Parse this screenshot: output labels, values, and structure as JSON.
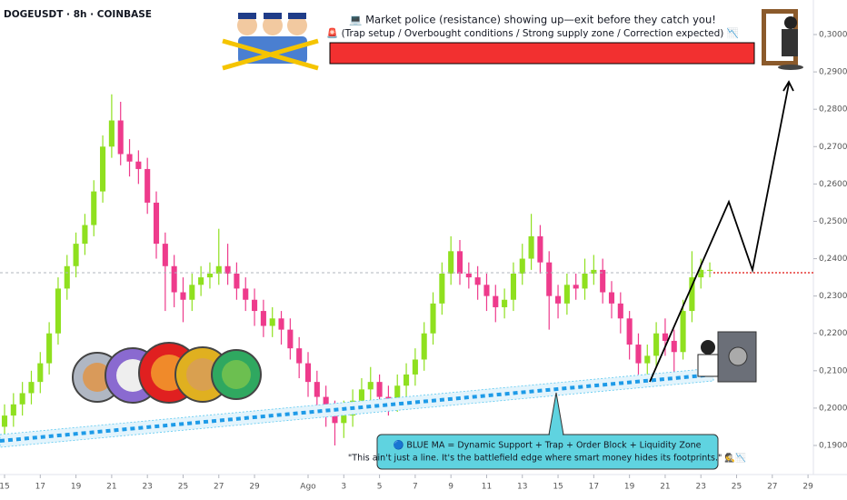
{
  "chart_data": {
    "type": "candlestick",
    "title": "DOGEUSDT · 8h · COINBASE",
    "annotations": [
      "💻 Market police (resistance) showing up—exit before they catch you!",
      "🚨 (Trap setup / Overbought conditions / Strong supply zone / Correction expected) 📉",
      "🔵 BLUE MA = Dynamic Support + Trap + Order Block + Liquidity Zone",
      "\"This ain't just a line. It's the battlefield edge where smart money hides its footprints.\" 🕵️📉"
    ],
    "up_color": "#8fe01f",
    "down_color": "#ee3b8c",
    "open": [
      0.195,
      0.198,
      0.201,
      0.204,
      0.207,
      0.212,
      0.22,
      0.232,
      0.238,
      0.244,
      0.249,
      0.258,
      0.27,
      0.277,
      0.268,
      0.266,
      0.264,
      0.255,
      0.244,
      0.238,
      0.231,
      0.229,
      0.233,
      0.235,
      0.236,
      0.238,
      0.236,
      0.232,
      0.229,
      0.226,
      0.222,
      0.224,
      0.221,
      0.216,
      0.212,
      0.207,
      0.203,
      0.199,
      0.196,
      0.198,
      0.202,
      0.205,
      0.207,
      0.203,
      0.201,
      0.206,
      0.209,
      0.213,
      0.22,
      0.228,
      0.236,
      0.242,
      0.236,
      0.235,
      0.233,
      0.23,
      0.227,
      0.229,
      0.236,
      0.24,
      0.246,
      0.239,
      0.23,
      0.228,
      0.233,
      0.232,
      0.236,
      0.237,
      0.231,
      0.228,
      0.224,
      0.217,
      0.212,
      0.214,
      0.22,
      0.218,
      0.215,
      0.226,
      0.235,
      0.237
    ],
    "high": [
      0.201,
      0.204,
      0.207,
      0.21,
      0.215,
      0.223,
      0.235,
      0.241,
      0.247,
      0.252,
      0.261,
      0.273,
      0.284,
      0.282,
      0.272,
      0.269,
      0.267,
      0.258,
      0.247,
      0.241,
      0.235,
      0.236,
      0.238,
      0.239,
      0.248,
      0.244,
      0.239,
      0.235,
      0.232,
      0.229,
      0.227,
      0.226,
      0.224,
      0.219,
      0.215,
      0.21,
      0.206,
      0.202,
      0.202,
      0.205,
      0.208,
      0.211,
      0.209,
      0.206,
      0.209,
      0.212,
      0.216,
      0.223,
      0.231,
      0.239,
      0.246,
      0.245,
      0.239,
      0.238,
      0.236,
      0.233,
      0.232,
      0.239,
      0.244,
      0.252,
      0.249,
      0.242,
      0.233,
      0.236,
      0.236,
      0.24,
      0.241,
      0.24,
      0.234,
      0.231,
      0.226,
      0.22,
      0.217,
      0.223,
      0.224,
      0.221,
      0.229,
      0.242,
      0.24,
      0.239
    ],
    "low": [
      0.191,
      0.195,
      0.198,
      0.201,
      0.204,
      0.209,
      0.217,
      0.229,
      0.235,
      0.241,
      0.246,
      0.255,
      0.267,
      0.265,
      0.262,
      0.26,
      0.252,
      0.24,
      0.226,
      0.227,
      0.223,
      0.226,
      0.23,
      0.232,
      0.233,
      0.233,
      0.229,
      0.226,
      0.222,
      0.219,
      0.219,
      0.217,
      0.213,
      0.208,
      0.203,
      0.199,
      0.195,
      0.19,
      0.192,
      0.195,
      0.199,
      0.202,
      0.199,
      0.198,
      0.199,
      0.203,
      0.206,
      0.21,
      0.217,
      0.225,
      0.233,
      0.233,
      0.232,
      0.229,
      0.226,
      0.223,
      0.224,
      0.226,
      0.233,
      0.237,
      0.236,
      0.221,
      0.224,
      0.225,
      0.229,
      0.229,
      0.233,
      0.228,
      0.224,
      0.22,
      0.213,
      0.209,
      0.209,
      0.211,
      0.214,
      0.208,
      0.213,
      0.223,
      0.232,
      0.235
    ],
    "close": [
      0.198,
      0.201,
      0.204,
      0.207,
      0.212,
      0.22,
      0.232,
      0.238,
      0.244,
      0.249,
      0.258,
      0.27,
      0.277,
      0.268,
      0.266,
      0.264,
      0.255,
      0.244,
      0.238,
      0.231,
      0.229,
      0.233,
      0.235,
      0.236,
      0.238,
      0.236,
      0.232,
      0.229,
      0.226,
      0.222,
      0.224,
      0.221,
      0.216,
      0.212,
      0.207,
      0.203,
      0.199,
      0.196,
      0.198,
      0.202,
      0.205,
      0.207,
      0.203,
      0.201,
      0.206,
      0.209,
      0.213,
      0.22,
      0.228,
      0.236,
      0.242,
      0.236,
      0.235,
      0.233,
      0.23,
      0.227,
      0.229,
      0.236,
      0.24,
      0.246,
      0.239,
      0.23,
      0.228,
      0.233,
      0.232,
      0.236,
      0.237,
      0.231,
      0.228,
      0.224,
      0.217,
      0.212,
      0.214,
      0.22,
      0.218,
      0.215,
      0.226,
      0.235,
      0.237,
      0.237
    ],
    "xlim": [
      -0.51,
      90.6
    ],
    "xticks": [
      {
        "value": 0,
        "label": "15"
      },
      {
        "value": 4,
        "label": "17"
      },
      {
        "value": 8,
        "label": "19"
      },
      {
        "value": 12,
        "label": "21"
      },
      {
        "value": 16,
        "label": "23"
      },
      {
        "value": 20,
        "label": "25"
      },
      {
        "value": 24,
        "label": "27"
      },
      {
        "value": 28,
        "label": "29"
      },
      {
        "value": 34,
        "label": "Ago"
      },
      {
        "value": 38,
        "label": "3"
      },
      {
        "value": 42,
        "label": "5"
      },
      {
        "value": 46,
        "label": "7"
      },
      {
        "value": 50,
        "label": "9"
      },
      {
        "value": 54,
        "label": "11"
      },
      {
        "value": 58,
        "label": "13"
      },
      {
        "value": 62,
        "label": "15"
      },
      {
        "value": 66,
        "label": "17"
      },
      {
        "value": 70,
        "label": "19"
      },
      {
        "value": 74,
        "label": "21"
      },
      {
        "value": 78,
        "label": "23"
      },
      {
        "value": 82,
        "label": "25"
      },
      {
        "value": 86,
        "label": "27"
      },
      {
        "value": 90,
        "label": "29"
      }
    ],
    "ylim": [
      0.18513,
      0.30925
    ],
    "yticks": [
      {
        "value": 0.19,
        "label": "0,1900"
      },
      {
        "value": 0.2,
        "label": "0,2000"
      },
      {
        "value": 0.21,
        "label": "0,2100"
      },
      {
        "value": 0.22,
        "label": "0,2200"
      },
      {
        "value": 0.23,
        "label": "0,2300"
      },
      {
        "value": 0.24,
        "label": "0,2400"
      },
      {
        "value": 0.25,
        "label": "0,2500"
      },
      {
        "value": 0.26,
        "label": "0,2600"
      },
      {
        "value": 0.27,
        "label": "0,2700"
      },
      {
        "value": 0.28,
        "label": "0,2800"
      },
      {
        "value": 0.29,
        "label": "0,2900"
      },
      {
        "value": 0.3,
        "label": "0,3000"
      }
    ]
  }
}
